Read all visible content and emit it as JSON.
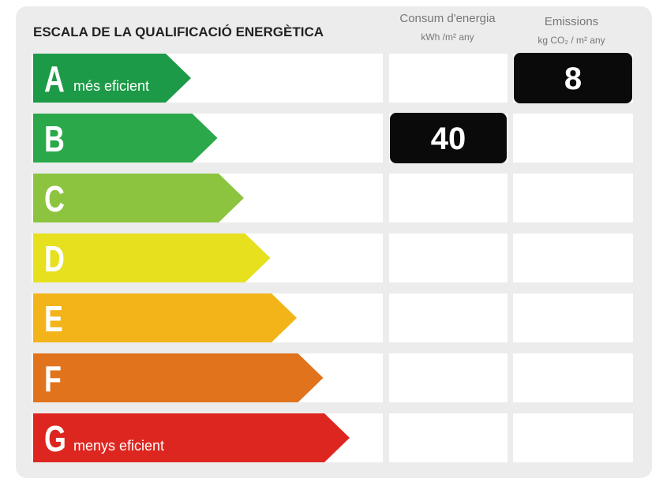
{
  "title": "ESCALA DE LA QUALIFICACIÓ ENERGÈTICA",
  "columns": [
    {
      "title": "Consum d'energia",
      "unit": "kWh /m² any"
    },
    {
      "title": "Emissions",
      "unit": "kg CO₂ / m² any"
    }
  ],
  "rows": [
    {
      "letter": "A",
      "note": "més eficient",
      "color": "#1d9a48",
      "emissions": 8
    },
    {
      "letter": "B",
      "color": "#2aa84a",
      "consumption": 40
    },
    {
      "letter": "C",
      "color": "#8cc43f"
    },
    {
      "letter": "D",
      "color": "#e6e01e"
    },
    {
      "letter": "E",
      "color": "#f2b419"
    },
    {
      "letter": "F",
      "color": "#e0731c"
    },
    {
      "letter": "G",
      "note": "menys eficient",
      "color": "#de2620"
    }
  ]
}
